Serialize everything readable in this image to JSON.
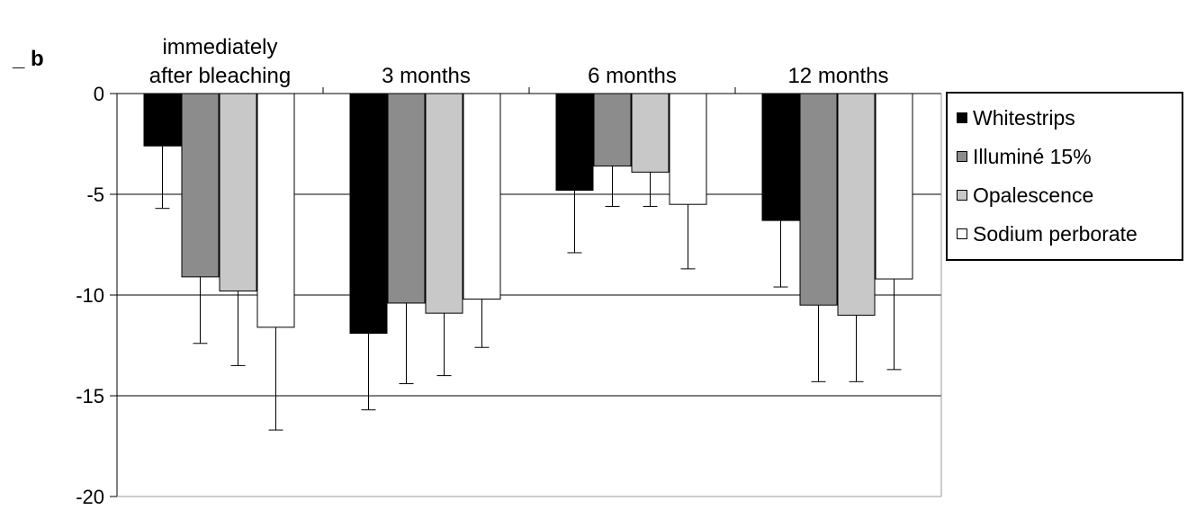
{
  "chart_data": {
    "type": "bar",
    "ylabel": "_ b",
    "categories": [
      [
        "immediately",
        "after bleaching"
      ],
      [
        "3 months"
      ],
      [
        "6 months"
      ],
      [
        "12 months"
      ]
    ],
    "ylim": [
      -20,
      0
    ],
    "yticks": [
      0,
      -5,
      -10,
      -15,
      -20
    ],
    "grid": true,
    "legend_position": "right",
    "series": [
      {
        "name": "Whitestrips",
        "color": "#000000",
        "values": [
          -2.6,
          -11.9,
          -4.8,
          -6.3
        ],
        "errors": [
          3.1,
          3.8,
          3.1,
          3.3
        ]
      },
      {
        "name": "Illuminé 15%",
        "color": "#8c8c8c",
        "values": [
          -9.1,
          -10.4,
          -3.6,
          -10.5
        ],
        "errors": [
          3.3,
          4.0,
          2.0,
          3.8
        ]
      },
      {
        "name": "Opalescence",
        "color": "#c8c8c8",
        "values": [
          -9.8,
          -10.9,
          -3.9,
          -11.0
        ],
        "errors": [
          3.7,
          3.1,
          1.7,
          3.3
        ]
      },
      {
        "name": "Sodium perborate",
        "color": "#ffffff",
        "values": [
          -11.6,
          -10.2,
          -5.5,
          -9.2
        ],
        "errors": [
          5.1,
          2.4,
          3.2,
          4.5
        ]
      }
    ]
  }
}
